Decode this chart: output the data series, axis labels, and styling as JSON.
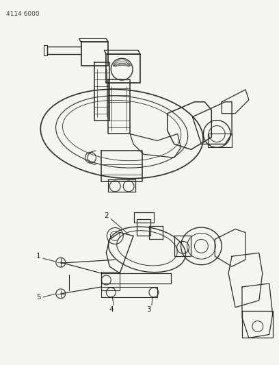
{
  "background_color": "#f5f5f0",
  "title_text": "4114 6000",
  "title_fontsize": 6.5,
  "title_color": "#444444",
  "fig_width": 4.08,
  "fig_height": 5.33,
  "dpi": 100,
  "line_color": "#2a2a2a",
  "label_color": "#1a1a1a",
  "label_fontsize": 7
}
